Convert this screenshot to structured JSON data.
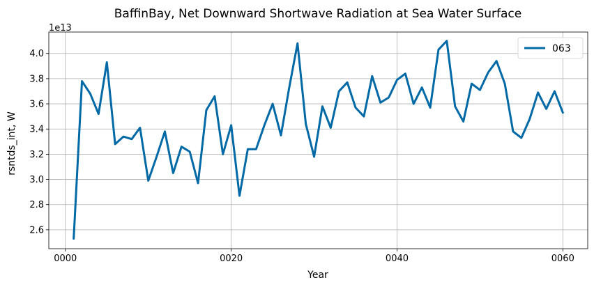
{
  "chart_data": {
    "type": "line",
    "title": "BaffinBay, Net Downward Shortwave Radiation at Sea Water Surface",
    "xlabel": "Year",
    "ylabel": "rsntds_int, W",
    "y_offset_label": "1e13",
    "y_scale": 10000000000000.0,
    "xlim": [
      -2,
      63
    ],
    "ylim": [
      2.45,
      4.17
    ],
    "x_ticks": [
      0,
      20,
      40,
      60
    ],
    "x_tick_labels": [
      "0000",
      "0020",
      "0040",
      "0060"
    ],
    "y_ticks": [
      2.6,
      2.8,
      3.0,
      3.2,
      3.4,
      3.6,
      3.8,
      4.0
    ],
    "y_tick_labels": [
      "2.6",
      "2.8",
      "3.0",
      "3.2",
      "3.4",
      "3.6",
      "3.8",
      "4.0"
    ],
    "grid": true,
    "legend_position": "top-right",
    "series": [
      {
        "name": "063",
        "color": "#0069a6",
        "x": [
          1,
          2,
          3,
          4,
          5,
          6,
          7,
          8,
          9,
          10,
          11,
          12,
          13,
          14,
          15,
          16,
          17,
          18,
          19,
          20,
          21,
          22,
          23,
          24,
          25,
          26,
          27,
          28,
          29,
          30,
          31,
          32,
          33,
          34,
          35,
          36,
          37,
          38,
          39,
          40,
          41,
          42,
          43,
          44,
          45,
          46,
          47,
          48,
          49,
          50,
          51,
          52,
          53,
          54,
          55,
          56,
          57,
          58,
          59,
          60
        ],
        "values": [
          2.53,
          3.78,
          3.68,
          3.52,
          3.93,
          3.28,
          3.34,
          3.32,
          3.41,
          2.99,
          3.18,
          3.38,
          3.05,
          3.26,
          3.22,
          2.97,
          3.55,
          3.66,
          3.2,
          3.43,
          2.87,
          3.24,
          3.24,
          3.43,
          3.6,
          3.35,
          3.73,
          4.08,
          3.44,
          3.18,
          3.58,
          3.41,
          3.7,
          3.77,
          3.57,
          3.5,
          3.82,
          3.61,
          3.65,
          3.79,
          3.84,
          3.6,
          3.73,
          3.57,
          4.03,
          4.1,
          3.58,
          3.46,
          3.76,
          3.71,
          3.85,
          3.94,
          3.76,
          3.38,
          3.33,
          3.48,
          3.69,
          3.56,
          3.7,
          3.53
        ]
      }
    ]
  }
}
